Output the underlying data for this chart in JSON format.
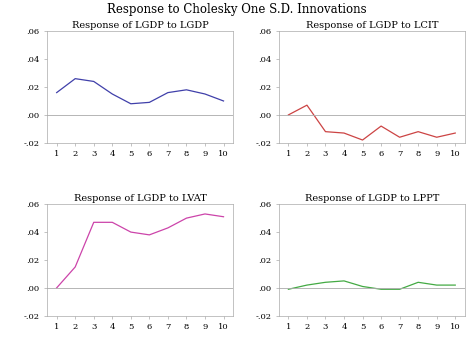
{
  "title": "Response to Cholesky One S.D. Innovations",
  "subplots": [
    {
      "title": "Response of LGDP to LGDP",
      "color": "#4040aa",
      "x": [
        1,
        2,
        3,
        4,
        5,
        6,
        7,
        8,
        9,
        10
      ],
      "y": [
        0.016,
        0.026,
        0.024,
        0.015,
        0.008,
        0.009,
        0.016,
        0.018,
        0.015,
        0.01
      ]
    },
    {
      "title": "Response of LGDP to LCIT",
      "color": "#cc4444",
      "x": [
        1,
        2,
        3,
        4,
        5,
        6,
        7,
        8,
        9,
        10
      ],
      "y": [
        0.0,
        0.007,
        -0.012,
        -0.013,
        -0.018,
        -0.008,
        -0.016,
        -0.012,
        -0.016,
        -0.013
      ]
    },
    {
      "title": "Response of LGDP to LVAT",
      "color": "#cc44aa",
      "x": [
        1,
        2,
        3,
        4,
        5,
        6,
        7,
        8,
        9,
        10
      ],
      "y": [
        0.0,
        0.015,
        0.047,
        0.047,
        0.04,
        0.038,
        0.043,
        0.05,
        0.053,
        0.051
      ]
    },
    {
      "title": "Response of LGDP to LPPT",
      "color": "#44aa44",
      "x": [
        1,
        2,
        3,
        4,
        5,
        6,
        7,
        8,
        9,
        10
      ],
      "y": [
        -0.001,
        0.002,
        0.004,
        0.005,
        0.001,
        -0.001,
        -0.001,
        0.004,
        0.002,
        0.002
      ]
    }
  ],
  "ylim": [
    -0.02,
    0.06
  ],
  "yticks": [
    -0.02,
    0.0,
    0.02,
    0.04,
    0.06
  ],
  "ytick_labels": [
    "-.02",
    ".00",
    ".02",
    ".04",
    ".06"
  ],
  "xlim": [
    0.5,
    10.5
  ],
  "xticks": [
    1,
    2,
    3,
    4,
    5,
    6,
    7,
    8,
    9,
    10
  ],
  "background_color": "#ffffff",
  "title_fontsize": 8.5,
  "subplot_title_fontsize": 7.0,
  "tick_fontsize": 6.0,
  "line_width": 0.9
}
